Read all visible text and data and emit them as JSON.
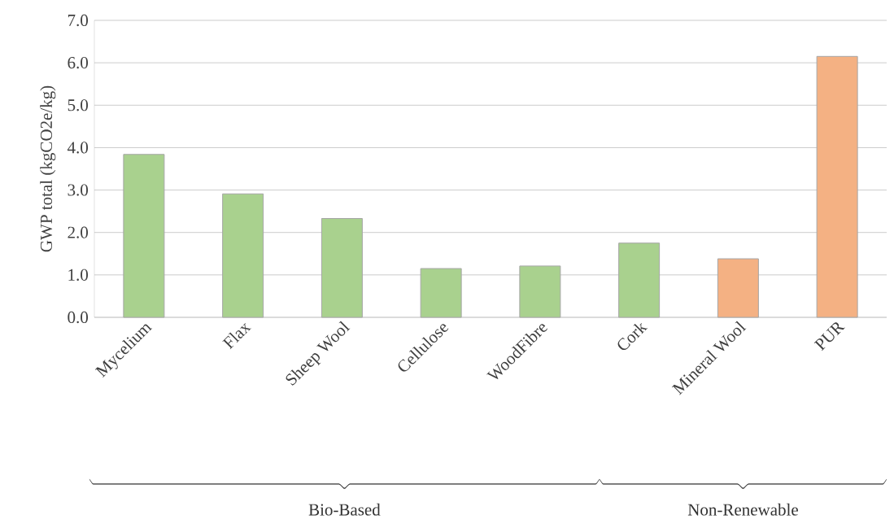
{
  "chart_data": {
    "type": "bar",
    "ylabel": "GWP total (kgCO2e/kg)",
    "categories": [
      "Mycelium",
      "Flax",
      "Sheep Wool",
      "Cellulose",
      "WoodFibre",
      "Cork",
      "Mineral Wool",
      "PUR"
    ],
    "values": [
      3.84,
      2.91,
      2.33,
      1.15,
      1.21,
      1.75,
      1.38,
      6.15
    ],
    "colors": [
      "#a9d18e",
      "#a9d18e",
      "#a9d18e",
      "#a9d18e",
      "#a9d18e",
      "#a9d18e",
      "#f4b183",
      "#f4b183"
    ],
    "ylim": [
      0,
      7
    ],
    "yticks": [
      {
        "value": 0,
        "label": "0.0"
      },
      {
        "value": 1,
        "label": "1.0"
      },
      {
        "value": 2,
        "label": "2.0"
      },
      {
        "value": 3,
        "label": "3.0"
      },
      {
        "value": 4,
        "label": "4.0"
      },
      {
        "value": 5,
        "label": "5.0"
      },
      {
        "value": 6,
        "label": "6.0"
      },
      {
        "value": 7,
        "label": "7.0"
      }
    ],
    "grid": "y",
    "annotations": [
      "Bio-Based",
      "Non-Renewable"
    ]
  }
}
